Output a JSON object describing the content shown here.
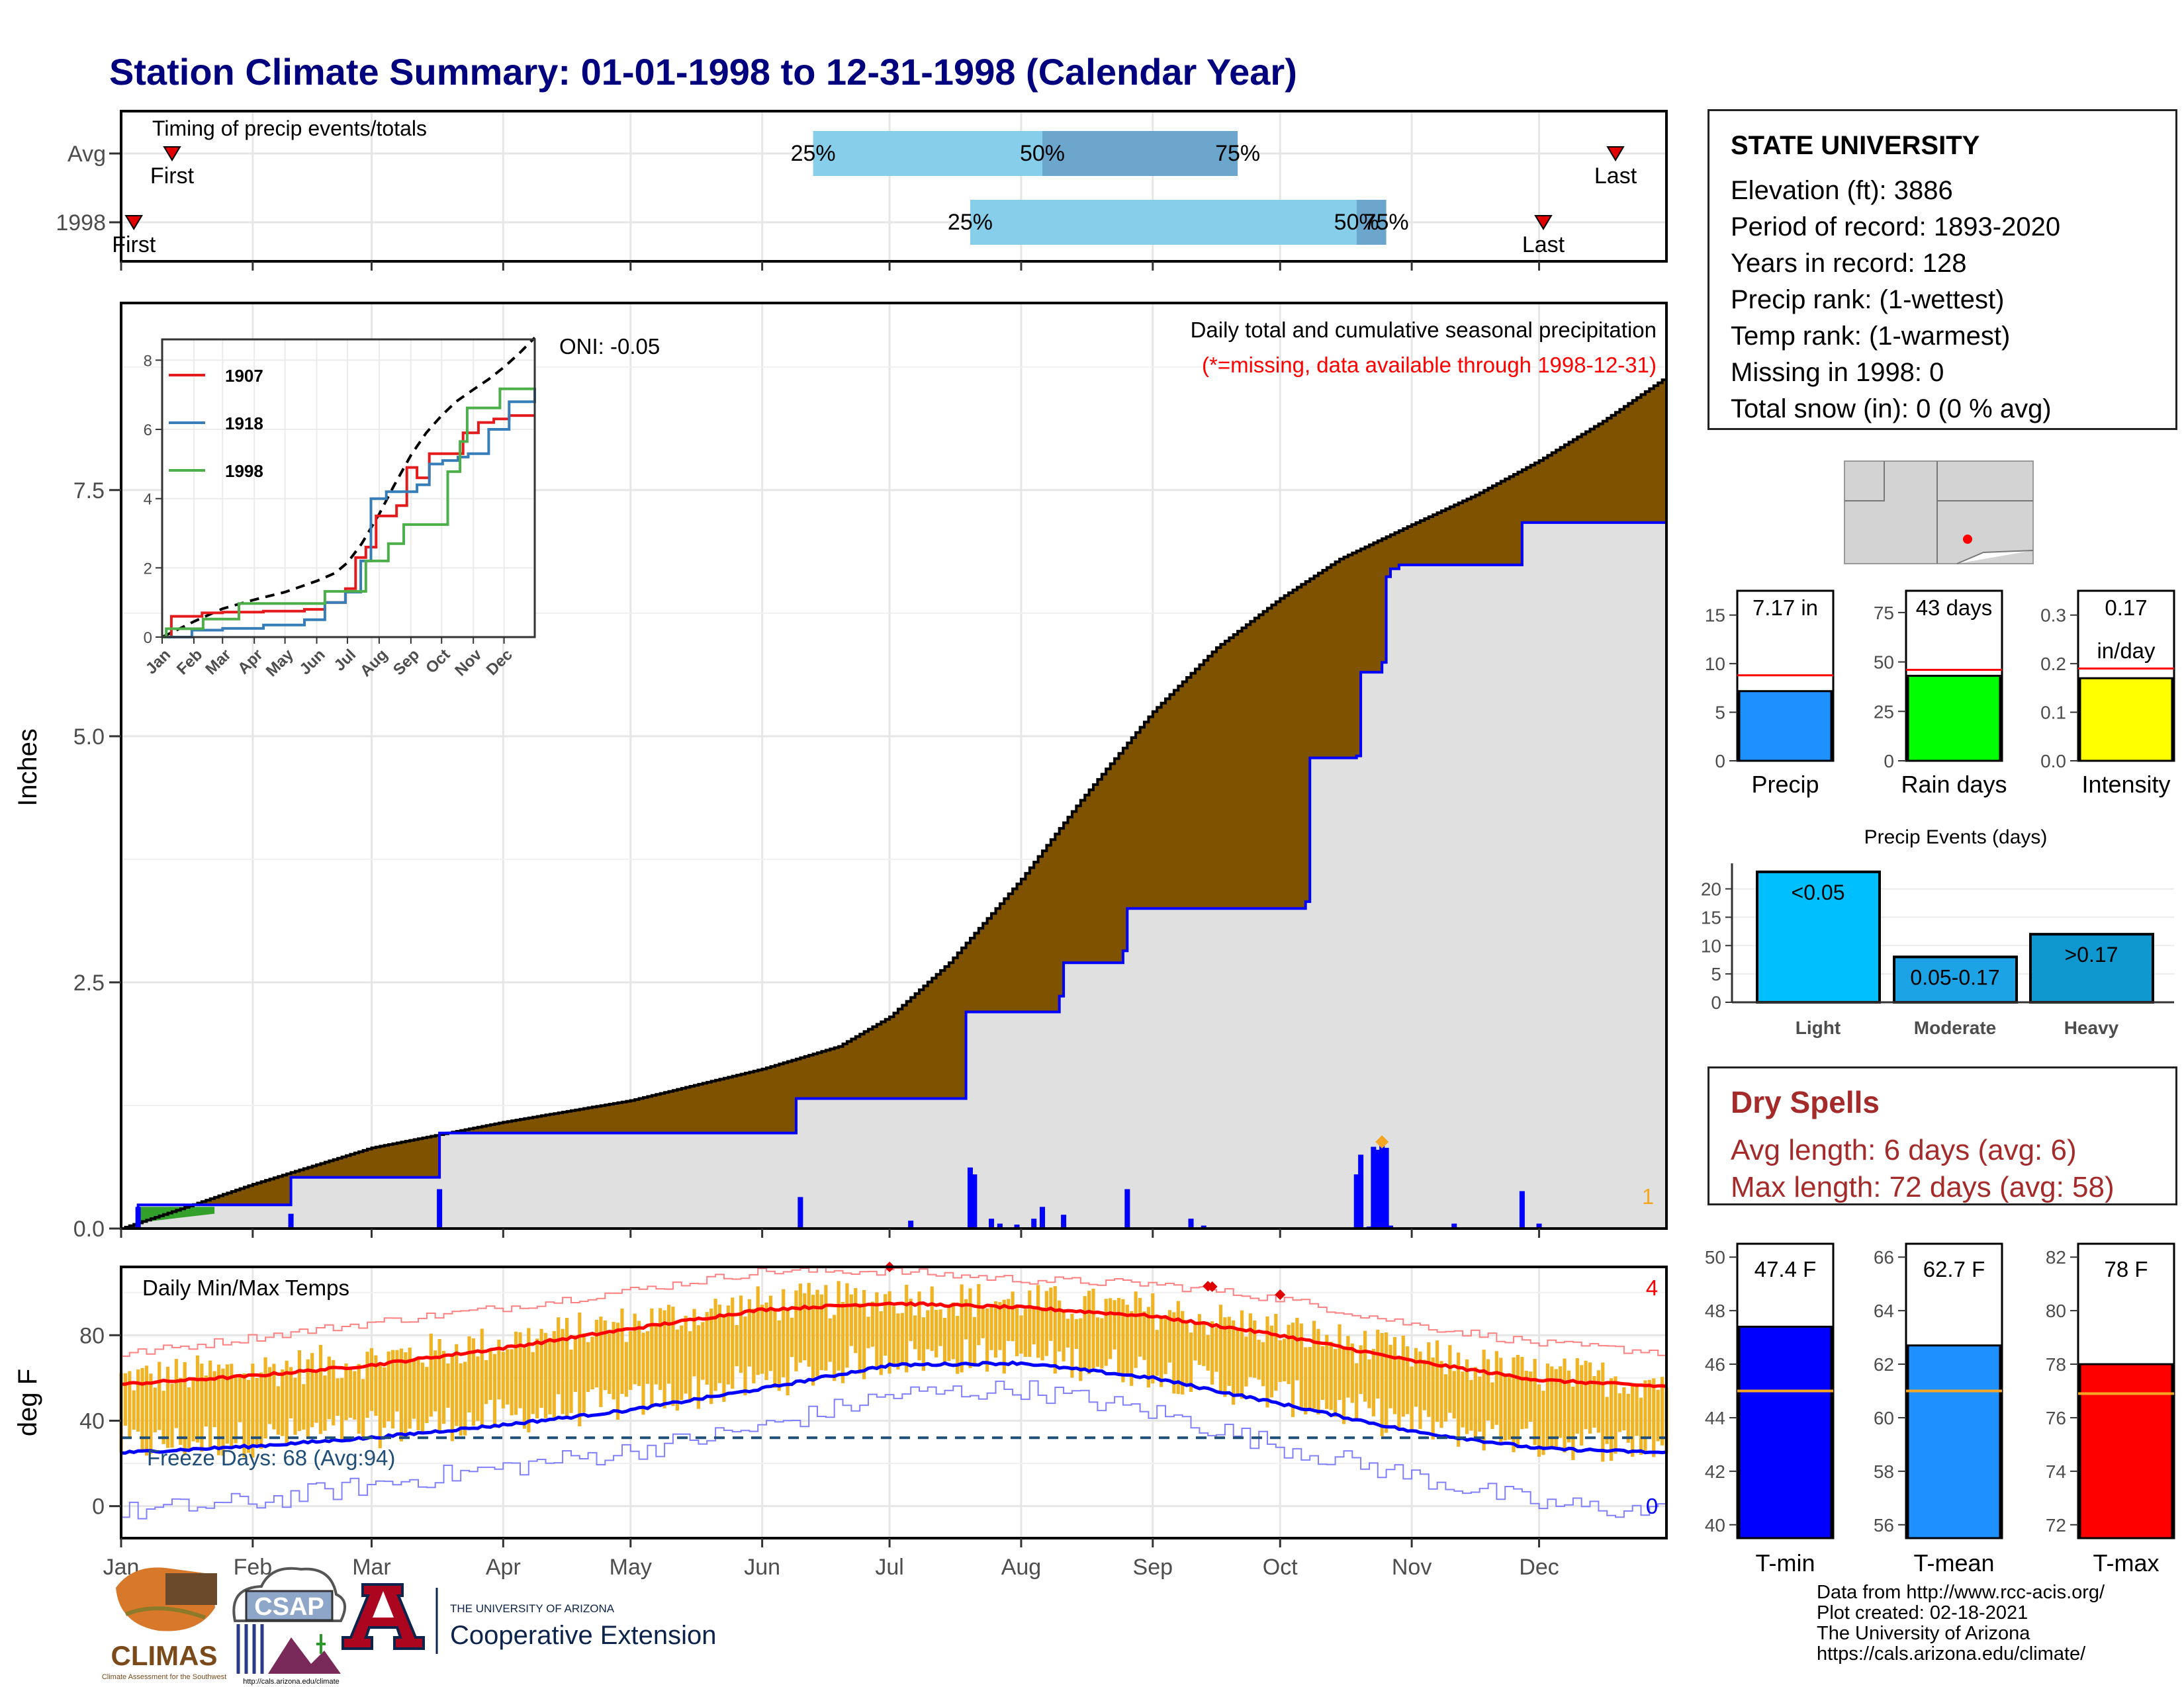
{
  "title": "Station Climate Summary: 01-01-1998 to 12-31-1998 (Calendar Year)",
  "colors": {
    "title": "#00007f",
    "brown": "#7f5200",
    "gray_fill": "#e0e0e0",
    "blue_line": "#0000ff",
    "precip_bar": "#1e90ff",
    "rain_bar": "#00ff00",
    "intensity_bar": "#ffff00",
    "light_bar": "#00bfff",
    "moderate_bar": "#1ca3e6",
    "heavy_bar": "#0f97cf",
    "tmin_bar": "#0000ff",
    "tmean_bar": "#1e90ff",
    "tmax_bar": "#ff0000",
    "temp_bars": "#f0b323",
    "avg_line": "#f5a623",
    "red": "#ff0000",
    "dry_spell": "#a52a2a"
  },
  "months": [
    "Jan",
    "Feb",
    "Mar",
    "Apr",
    "May",
    "Jun",
    "Jul",
    "Aug",
    "Sep",
    "Oct",
    "Nov",
    "Dec"
  ],
  "timing": {
    "label": "Timing of precip events/totals",
    "avg_row_label": "Avg",
    "year_row_label": "1998",
    "first_label": "First",
    "last_label": "Last",
    "avg": {
      "first_day": 13,
      "p25": 164,
      "p50": 218,
      "p75": 264,
      "last_day": 353
    },
    "year": {
      "first_day": 4,
      "p25": 201,
      "p50": 292,
      "p75": 299,
      "last_day": 336
    },
    "pct_labels": [
      "25%",
      "50%",
      "75%"
    ]
  },
  "precip": {
    "ylabel": "Inches",
    "title_line1": "Daily total and cumulative seasonal precipitation",
    "title_line2": "(*=missing, data available through 1998-12-31)",
    "oni": "ONI: -0.05",
    "missing_count": "1",
    "yticks": [
      "0.0",
      "2.5",
      "5.0",
      "7.5"
    ]
  },
  "inset": {
    "yticks": [
      "0",
      "2",
      "4",
      "6",
      "8"
    ],
    "month_labels": [
      "Jan",
      "Feb",
      "Mar",
      "Apr",
      "May",
      "Jun",
      "Jul",
      "Aug",
      "Sep",
      "Oct",
      "Nov",
      "Dec"
    ],
    "legend": [
      {
        "name": "1907",
        "color": "#e41a1c"
      },
      {
        "name": "1918",
        "color": "#377eb8"
      },
      {
        "name": "1998",
        "color": "#4daf4a"
      }
    ]
  },
  "temps": {
    "ylabel": "deg F",
    "title": "Daily Min/Max Temps",
    "freeze_label": "Freeze Days: 68 (Avg:94)",
    "record_high_count": "4",
    "record_low_count": "0",
    "yticks": [
      "0",
      "40",
      "80"
    ]
  },
  "station": {
    "name": "STATE UNIVERSITY",
    "lines": [
      "Elevation (ft): 3886",
      "Period of record: 1893-2020",
      "Years in record: 128",
      "Precip rank:  (1-wettest)",
      "Temp rank:  (1-warmest)",
      "Missing in 1998: 0",
      "Total snow (in): 0 (0 % avg)"
    ]
  },
  "summary_bars": [
    {
      "id": "precip",
      "label": "Precip",
      "box_text": [
        "7.17 in"
      ],
      "ylim": [
        0,
        17.5
      ],
      "yticks": [
        0,
        5,
        10,
        15
      ],
      "value": 7.17,
      "avg": 8.8,
      "color": "#1e90ff"
    },
    {
      "id": "raindays",
      "label": "Rain days",
      "box_text": [
        "43 days"
      ],
      "ylim": [
        0,
        86
      ],
      "yticks": [
        0,
        25,
        50,
        75
      ],
      "value": 43,
      "avg": 46,
      "color": "#00ff00"
    },
    {
      "id": "intensity",
      "label": "Intensity",
      "box_text": [
        "0.17",
        "in/day"
      ],
      "ylim": [
        0,
        0.35
      ],
      "yticks": [
        "0.0",
        "0.1",
        "0.2",
        "0.3"
      ],
      "value": 0.17,
      "avg": 0.19,
      "color": "#ffff00"
    }
  ],
  "precip_events": {
    "title": "Precip Events (days)",
    "categories": [
      "Light",
      "Moderate",
      "Heavy"
    ],
    "bar_labels": [
      "<0.05",
      "0.05-0.17",
      ">0.17"
    ],
    "values": [
      23,
      8,
      12
    ],
    "yticks": [
      0,
      5,
      10,
      15,
      20
    ]
  },
  "dry_spells": {
    "title": "Dry Spells",
    "line1": "Avg length: 6 days (avg: 6)",
    "line2": "Max length: 72 days (avg: 58)"
  },
  "temp_summary": [
    {
      "id": "tmin",
      "label": "T-min",
      "box_text": "47.4 F",
      "ylim": [
        39.5,
        50.5
      ],
      "yticks": [
        40,
        42,
        44,
        46,
        48,
        50
      ],
      "value": 47.4,
      "avg": 45.0,
      "color": "#0000ff"
    },
    {
      "id": "tmean",
      "label": "T-mean",
      "box_text": "62.7 F",
      "ylim": [
        55.5,
        66.5
      ],
      "yticks": [
        56,
        58,
        60,
        62,
        64,
        66
      ],
      "value": 62.7,
      "avg": 61.0,
      "color": "#1e90ff"
    },
    {
      "id": "tmax",
      "label": "T-max",
      "box_text": "78 F",
      "ylim": [
        71.5,
        82.5
      ],
      "yticks": [
        72,
        74,
        76,
        78,
        80,
        82
      ],
      "value": 78,
      "avg": 76.9,
      "color": "#ff0000"
    }
  ],
  "footer": {
    "lines": [
      "Data from http://www.rcc-acis.org/",
      "Plot created: 02-18-2021",
      "The University of Arizona",
      "https://cals.arizona.edu/climate/"
    ],
    "climas": "CLIMAS",
    "climas_sub": "Climate Assessment for the Southwest",
    "csap": "CSAP",
    "csap_url": "http://cals.arizona.edu/climate",
    "ua_line1": "THE UNIVERSITY OF ARIZONA",
    "ua_line2": "Cooperative Extension"
  },
  "chart_data": [
    {
      "type": "area",
      "title": "Daily total and cumulative seasonal precipitation",
      "ylabel": "Inches",
      "ylim": [
        0,
        9.4
      ],
      "x_units": "day of year 1998",
      "series": [
        {
          "name": "",
          "role": "average cumulative",
          "x": [
            1,
            15,
            32,
            60,
            91,
            121,
            152,
            170,
            182,
            196,
            213,
            227,
            244,
            259,
            274,
            288,
            305,
            320,
            335,
            350,
            365
          ],
          "values": [
            0,
            0.2,
            0.45,
            0.82,
            1.08,
            1.3,
            1.62,
            1.85,
            2.15,
            2.7,
            3.55,
            4.35,
            5.25,
            5.9,
            6.4,
            6.8,
            7.15,
            7.45,
            7.8,
            8.2,
            8.65
          ]
        },
        {
          "name": "",
          "role": "1998 cumulative",
          "x": [
            1,
            5,
            41,
            41,
            76,
            76,
            160,
            160,
            200,
            200,
            222,
            223,
            237,
            238,
            280,
            281,
            292,
            293,
            298,
            299,
            300,
            302,
            330,
            331,
            365
          ],
          "values": [
            0,
            0.24,
            0.24,
            0.52,
            0.57,
            0.97,
            0.97,
            1.32,
            1.32,
            2.2,
            2.36,
            2.7,
            2.82,
            3.25,
            3.32,
            4.78,
            4.8,
            5.65,
            5.75,
            6.62,
            6.7,
            6.74,
            6.74,
            7.17,
            7.17
          ]
        }
      ],
      "daily_bars": {
        "x": [
          5,
          41,
          76,
          161,
          187,
          201,
          202,
          206,
          208,
          212,
          216,
          218,
          223,
          238,
          253,
          256,
          292,
          293,
          295,
          296,
          297,
          298,
          299,
          300,
          315,
          331,
          335
        ],
        "values": [
          0.22,
          0.15,
          0.4,
          0.32,
          0.08,
          0.62,
          0.55,
          0.1,
          0.05,
          0.04,
          0.1,
          0.22,
          0.14,
          0.4,
          0.1,
          0.03,
          0.55,
          0.75,
          0.02,
          0.83,
          0.8,
          0.85,
          0.82,
          0.03,
          0.05,
          0.38,
          0.05
        ]
      }
    },
    {
      "type": "line",
      "title": "",
      "x_units": "day of year",
      "ylim": [
        0,
        8.6
      ],
      "series": [
        {
          "name": "",
          "role": "average cumulative",
          "x": [
            1,
            15,
            32,
            60,
            91,
            121,
            152,
            170,
            182,
            196,
            213,
            227,
            244,
            259,
            274,
            288,
            305,
            320,
            335,
            350,
            365
          ],
          "values": [
            0,
            0.2,
            0.45,
            0.82,
            1.08,
            1.3,
            1.62,
            1.85,
            2.15,
            2.7,
            3.55,
            4.35,
            5.25,
            5.9,
            6.4,
            6.8,
            7.15,
            7.45,
            7.8,
            8.2,
            8.65
          ]
        },
        {
          "name": "1907",
          "x": [
            1,
            10,
            40,
            60,
            100,
            140,
            160,
            180,
            190,
            200,
            210,
            230,
            240,
            250,
            262,
            275,
            295,
            310,
            325,
            340,
            365
          ],
          "values": [
            0,
            0.6,
            0.7,
            0.72,
            0.75,
            0.8,
            1.0,
            1.4,
            2.3,
            2.6,
            3.5,
            3.8,
            4.9,
            4.6,
            5.3,
            5.3,
            5.9,
            6.2,
            6.3,
            6.4,
            6.4
          ]
        },
        {
          "name": "1918",
          "x": [
            1,
            30,
            60,
            100,
            140,
            160,
            180,
            195,
            205,
            220,
            240,
            250,
            262,
            275,
            290,
            300,
            320,
            340,
            365
          ],
          "values": [
            0,
            0.2,
            0.25,
            0.35,
            0.5,
            1.0,
            1.3,
            2.2,
            4.0,
            4.2,
            4.2,
            4.4,
            5.0,
            5.1,
            5.2,
            5.3,
            6.0,
            6.8,
            7.2
          ]
        },
        {
          "name": "1998",
          "x": [
            1,
            5,
            41,
            76,
            160,
            200,
            222,
            237,
            280,
            292,
            299,
            331,
            365
          ],
          "values": [
            0,
            0.24,
            0.52,
            0.97,
            1.32,
            2.2,
            2.7,
            3.25,
            4.78,
            5.65,
            6.62,
            7.17,
            7.17
          ]
        }
      ]
    },
    {
      "type": "bar",
      "title": "Daily Min/Max Temps",
      "ylabel": "deg F",
      "ylim": [
        -15,
        112
      ],
      "x_units": "day of year 1998",
      "series": [
        {
          "name": "",
          "role": "average max",
          "x": [
            1,
            32,
            60,
            91,
            121,
            152,
            182,
            213,
            244,
            274,
            305,
            335,
            365
          ],
          "values": [
            57,
            61,
            66,
            74,
            83,
            92,
            95,
            93,
            89,
            80,
            68,
            59,
            56
          ]
        },
        {
          "name": "",
          "role": "average min",
          "x": [
            1,
            32,
            60,
            91,
            121,
            152,
            182,
            213,
            244,
            274,
            305,
            335,
            365
          ],
          "values": [
            25,
            28,
            32,
            38,
            45,
            55,
            66,
            67,
            60,
            48,
            35,
            27,
            25
          ]
        },
        {
          "name": "",
          "role": "record high",
          "x": [
            1,
            32,
            60,
            91,
            121,
            152,
            182,
            213,
            244,
            274,
            305,
            335,
            365
          ],
          "values": [
            71,
            79,
            86,
            93,
            101,
            110,
            110,
            106,
            104,
            97,
            85,
            76,
            72
          ]
        },
        {
          "name": "",
          "role": "record low",
          "x": [
            1,
            32,
            60,
            91,
            121,
            152,
            182,
            213,
            244,
            274,
            305,
            335,
            365
          ],
          "values": [
            -3,
            2,
            10,
            18,
            26,
            37,
            52,
            55,
            44,
            28,
            14,
            1,
            -3
          ]
        }
      ],
      "reference_lines": [
        {
          "label": "freeze",
          "value": 32
        }
      ],
      "record_highs_x": [
        182,
        257,
        258,
        274
      ]
    },
    {
      "type": "bar",
      "title": "Precip Events (days)",
      "categories": [
        "Light",
        "Moderate",
        "Heavy"
      ],
      "values": [
        23,
        8,
        12
      ]
    },
    {
      "type": "bar",
      "categories": [
        "Precip",
        "Rain days",
        "Intensity"
      ],
      "series": [
        {
          "name": "",
          "values": [
            7.17,
            43,
            0.17
          ]
        }
      ]
    },
    {
      "type": "bar",
      "categories": [
        "T-min",
        "T-mean",
        "T-max"
      ],
      "series": [
        {
          "name": "",
          "values": [
            47.4,
            62.7,
            78
          ]
        }
      ]
    }
  ]
}
